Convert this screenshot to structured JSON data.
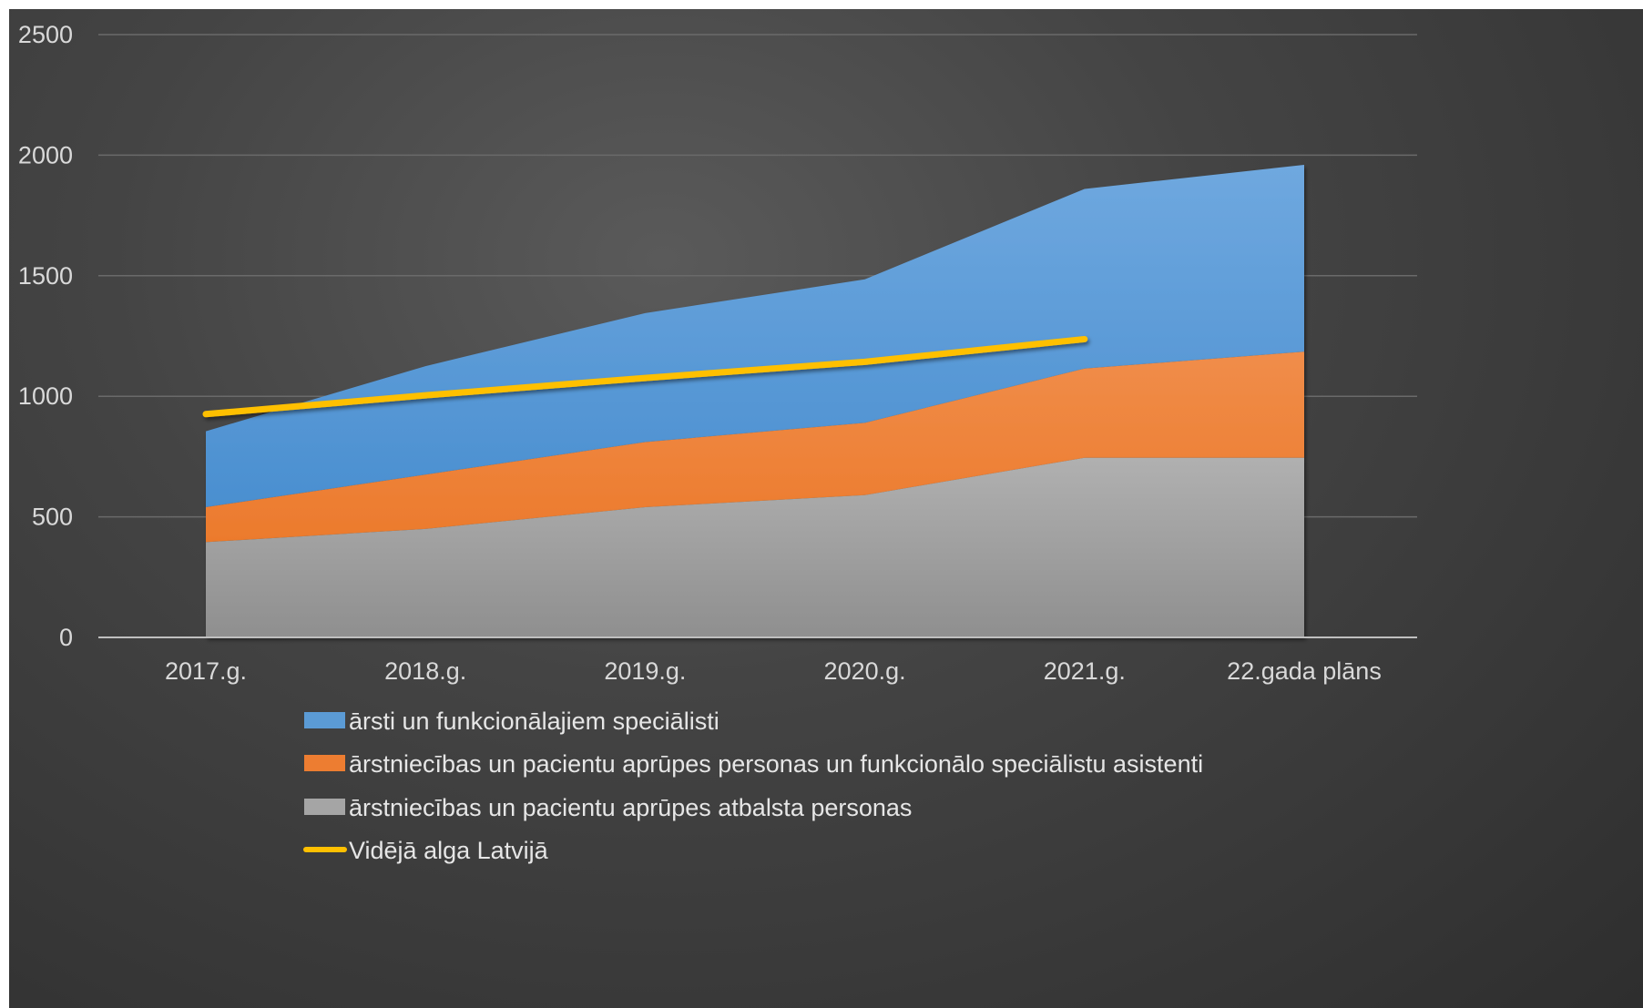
{
  "chart_data": {
    "type": "area",
    "stacked": true,
    "categories": [
      "2017.g.",
      "2018.g.",
      "2019.g.",
      "2020.g.",
      "2021.g.",
      "22.gada plāns"
    ],
    "yticks": [
      "0",
      "500",
      "1000",
      "1500",
      "2000",
      "2500"
    ],
    "ylim": [
      0,
      2500
    ],
    "grid": true,
    "legend_position": "bottom",
    "series": [
      {
        "name": "ārsti un funkcionālajiem speciālisti",
        "color": "#5b9bd5",
        "values": [
          315,
          450,
          535,
          595,
          745,
          775
        ]
      },
      {
        "name": "ārstniecības un pacientu aprūpes personas un funkcionālo speciālistu asistenti",
        "color": "#ed7d31",
        "values": [
          145,
          225,
          270,
          300,
          370,
          440
        ]
      },
      {
        "name": "ārstniecības un pacientu aprūpes atbalsta personas",
        "color": "#a5a5a5",
        "values": [
          395,
          450,
          540,
          590,
          745,
          745
        ]
      }
    ],
    "line_series": {
      "name": "Vidējā alga Latvijā",
      "color": "#ffc000",
      "values": [
        926,
        1004,
        1076,
        1143,
        1237,
        null
      ]
    }
  }
}
